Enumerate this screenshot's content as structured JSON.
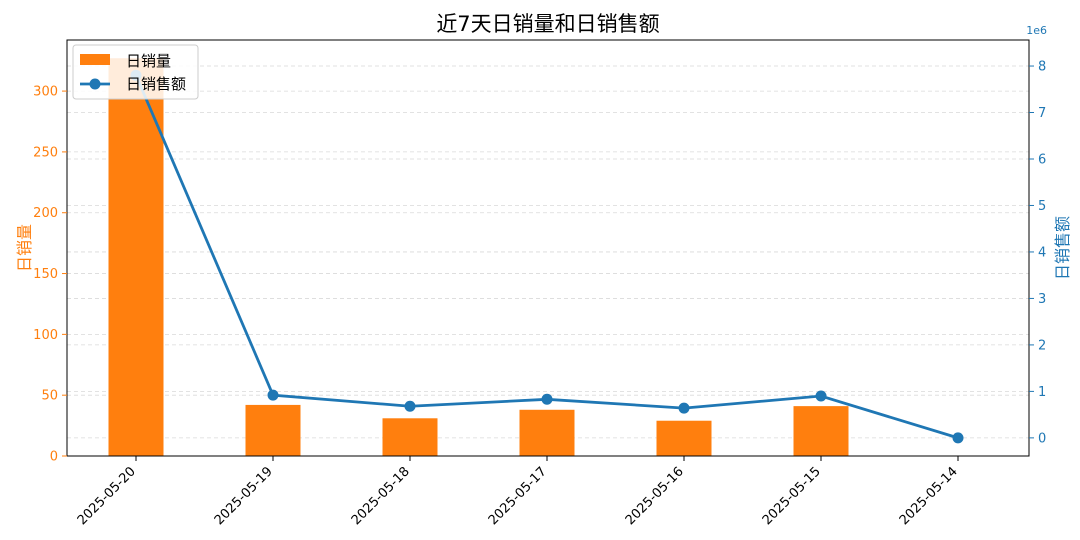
{
  "chart_data": {
    "type": "bar",
    "title": "近7天日销量和日销售额",
    "categories": [
      "2025-05-20",
      "2025-05-19",
      "2025-05-18",
      "2025-05-17",
      "2025-05-16",
      "2025-05-15",
      "2025-05-14"
    ],
    "series": [
      {
        "name": "日销量",
        "type": "bar",
        "axis": "left",
        "color": "#ff7f0e",
        "values": [
          327,
          42,
          31,
          38,
          29,
          41,
          0
        ]
      },
      {
        "name": "日销售额",
        "type": "line",
        "axis": "right",
        "color": "#1f77b4",
        "values": [
          7800000,
          920000,
          680000,
          830000,
          640000,
          900000,
          0
        ]
      }
    ],
    "y_left": {
      "label": "日销量",
      "ylim": [
        0,
        342
      ],
      "ticks": [
        0,
        50,
        100,
        150,
        200,
        250,
        300
      ]
    },
    "y_right": {
      "label": "日销售额",
      "ylim": [
        -390000,
        8560000
      ],
      "ticks": [
        0,
        1,
        2,
        3,
        4,
        5,
        6,
        7,
        8
      ],
      "offset_text": "1e6",
      "scale": 1000000
    },
    "grid": "horizontal dashed",
    "legend_position": "upper-left"
  }
}
